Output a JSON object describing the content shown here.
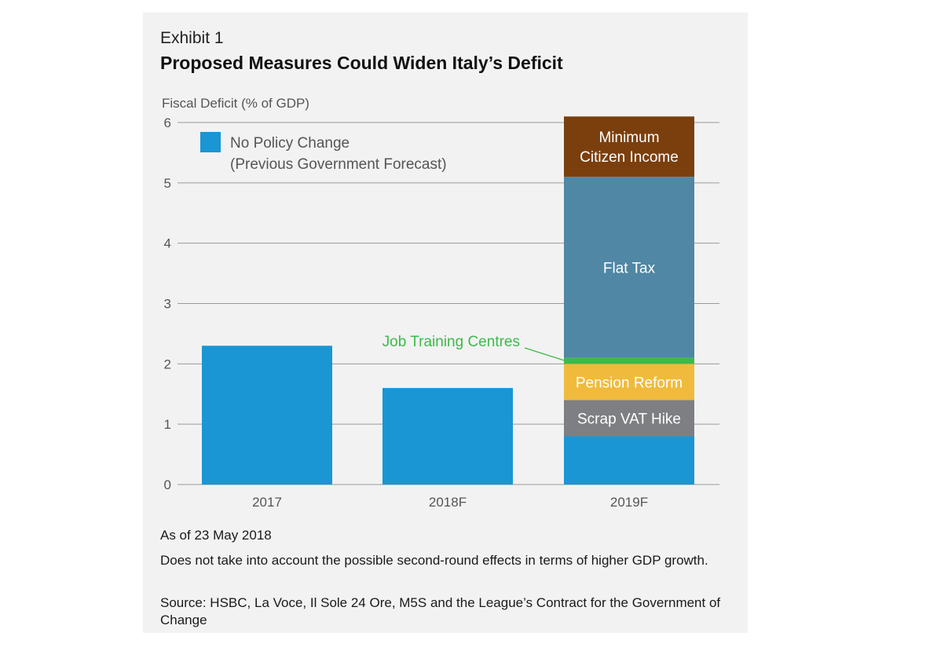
{
  "exhibit_label": "Exhibit 1",
  "title": "Proposed Measures Could Widen Italy’s Deficit",
  "notes": {
    "as_of": "As of 23 May 2018",
    "caveat": "Does not take into account the possible second-round effects in terms of higher GDP growth.",
    "source": "Source: HSBC, La Voce, Il Sole 24 Ore, M5S and the League’s Contract for the Government of Change"
  },
  "chart_data": {
    "type": "bar",
    "stacked": true,
    "ylabel": "Fiscal Deficit (% of GDP)",
    "xlabel": "",
    "ylim": [
      0,
      6
    ],
    "yticks": [
      0,
      1,
      2,
      3,
      4,
      5,
      6
    ],
    "grid": true,
    "categories": [
      "2017",
      "2018F",
      "2019F"
    ],
    "legend": {
      "position": "top-left",
      "entries": [
        {
          "line1": "No Policy Change",
          "line2": "(Previous Government Forecast)",
          "color": "#1a96d4"
        }
      ]
    },
    "series": [
      {
        "name": "No Policy Change",
        "color": "#1a96d4",
        "text_color": "#ffffff",
        "show_label": false,
        "values": [
          2.3,
          1.6,
          0.8
        ]
      },
      {
        "name": "Scrap VAT Hike",
        "label_lines": [
          "Scrap VAT Hike"
        ],
        "color": "#7d7f82",
        "text_color": "#ffffff",
        "show_label": true,
        "values": [
          0,
          0,
          0.6
        ]
      },
      {
        "name": "Pension Reform",
        "label_lines": [
          "Pension Reform"
        ],
        "color": "#f0bb3c",
        "text_color": "#ffffff",
        "show_label": true,
        "values": [
          0,
          0,
          0.6
        ]
      },
      {
        "name": "Job Training Centres",
        "label_lines": [
          "Job Training Centres"
        ],
        "color": "#3dba4a",
        "text_color": "#3dba4a",
        "show_label": false,
        "callout": true,
        "values": [
          0,
          0,
          0.1
        ]
      },
      {
        "name": "Flat Tax",
        "label_lines": [
          "Flat Tax"
        ],
        "color": "#4f87a4",
        "text_color": "#ffffff",
        "show_label": true,
        "values": [
          0,
          0,
          3.0
        ]
      },
      {
        "name": "Minimum Citizen Income",
        "label_lines": [
          "Minimum",
          "Citizen Income"
        ],
        "color": "#7b3f0d",
        "text_color": "#ffffff",
        "show_label": true,
        "values": [
          0,
          0,
          1.0
        ]
      }
    ]
  }
}
